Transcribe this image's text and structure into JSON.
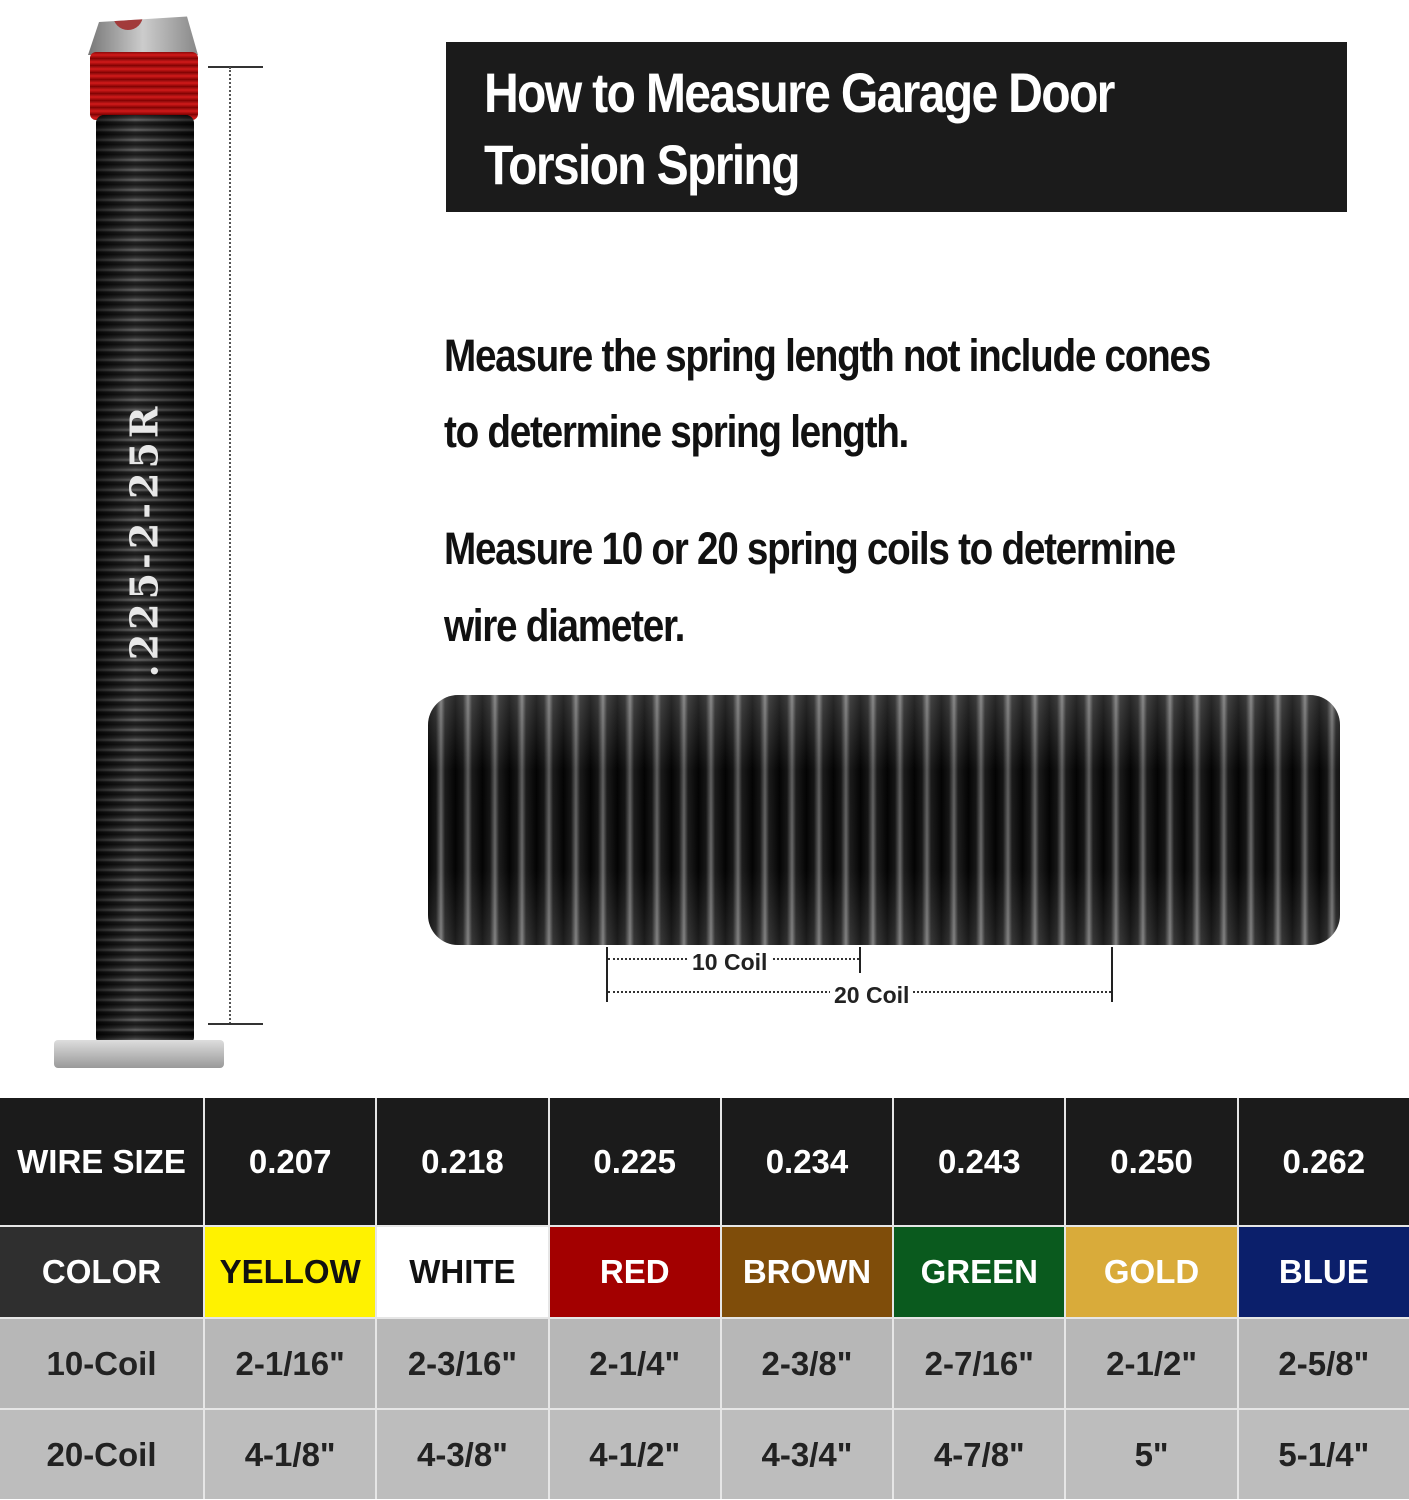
{
  "title": {
    "line1": "How to Measure Garage Door",
    "line2": "Torsion Spring"
  },
  "spring_label": ".225-2-25R",
  "instructions": [
    {
      "line1": "Measure the spring length not include cones",
      "line2": "to determine spring length."
    },
    {
      "line1": "Measure 10 or 20 spring coils to determine",
      "line2": "wire diameter."
    }
  ],
  "coil_labels": {
    "ten": "10 Coil",
    "twenty": "20 Coil"
  },
  "table": {
    "headers": [
      "WIRE SIZE",
      "COLOR",
      "10-Coil",
      "20-Coil"
    ],
    "wire_sizes": [
      "0.207",
      "0.218",
      "0.225",
      "0.234",
      "0.243",
      "0.250",
      "0.262"
    ],
    "colors": [
      {
        "name": "YELLOW",
        "hex": "#fff200",
        "text": "#111111"
      },
      {
        "name": "WHITE",
        "hex": "#ffffff",
        "text": "#111111"
      },
      {
        "name": "RED",
        "hex": "#a30000",
        "text": "#ffffff"
      },
      {
        "name": "BROWN",
        "hex": "#7f4d0a",
        "text": "#ffffff"
      },
      {
        "name": "GREEN",
        "hex": "#0a5a1e",
        "text": "#ffffff"
      },
      {
        "name": "GOLD",
        "hex": "#d9ab3a",
        "text": "#ffffff"
      },
      {
        "name": "BLUE",
        "hex": "#0b1f6b",
        "text": "#ffffff"
      }
    ],
    "ten_coil": [
      "2-1/16\"",
      "2-3/16\"",
      "2-1/4\"",
      "2-3/8\"",
      "2-7/16\"",
      "2-1/2\"",
      "2-5/8\""
    ],
    "twenty_coil": [
      "4-1/8\"",
      "4-3/8\"",
      "4-1/2\"",
      "4-3/4\"",
      "4-7/8\"",
      "5\"",
      "5-1/4\""
    ]
  }
}
